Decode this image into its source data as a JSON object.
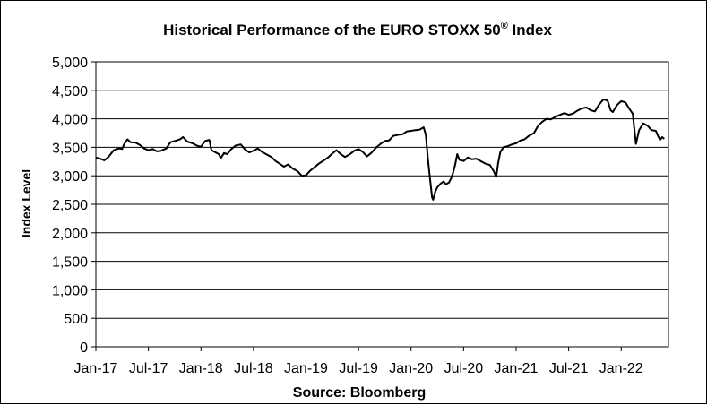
{
  "chart_data": {
    "type": "line",
    "title": "Historical Performance of the EURO STOXX 50",
    "title_superscript": "®",
    "title_suffix": " Index",
    "ylabel": "Index Level",
    "xlabel": "Source: Bloomberg",
    "ylim": [
      0,
      5000
    ],
    "yticks": [
      0,
      500,
      1000,
      1500,
      2000,
      2500,
      3000,
      3500,
      4000,
      4500,
      5000
    ],
    "ytick_labels": [
      "0",
      "500",
      "1,000",
      "1,500",
      "2,000",
      "2,500",
      "3,000",
      "3,500",
      "4,000",
      "4,500",
      "5,000"
    ],
    "xlim": [
      2017.0,
      2022.45
    ],
    "xticks": [
      2017.0,
      2017.5,
      2018.0,
      2018.5,
      2019.0,
      2019.5,
      2020.0,
      2020.5,
      2021.0,
      2021.5,
      2022.0
    ],
    "xtick_labels": [
      "Jan-17",
      "Jul-17",
      "Jan-18",
      "Jul-18",
      "Jan-19",
      "Jul-19",
      "Jan-20",
      "Jul-20",
      "Jan-21",
      "Jul-21",
      "Jan-22"
    ],
    "grid": "horizontal",
    "series": [
      {
        "name": "EURO STOXX 50",
        "color": "#000000",
        "points": [
          [
            2017.0,
            3320
          ],
          [
            2017.04,
            3300
          ],
          [
            2017.08,
            3270
          ],
          [
            2017.12,
            3330
          ],
          [
            2017.17,
            3450
          ],
          [
            2017.22,
            3480
          ],
          [
            2017.25,
            3470
          ],
          [
            2017.27,
            3560
          ],
          [
            2017.3,
            3640
          ],
          [
            2017.33,
            3590
          ],
          [
            2017.38,
            3580
          ],
          [
            2017.42,
            3540
          ],
          [
            2017.46,
            3480
          ],
          [
            2017.5,
            3450
          ],
          [
            2017.54,
            3470
          ],
          [
            2017.58,
            3430
          ],
          [
            2017.62,
            3440
          ],
          [
            2017.67,
            3480
          ],
          [
            2017.71,
            3590
          ],
          [
            2017.75,
            3610
          ],
          [
            2017.8,
            3640
          ],
          [
            2017.83,
            3680
          ],
          [
            2017.87,
            3600
          ],
          [
            2017.92,
            3570
          ],
          [
            2017.96,
            3530
          ],
          [
            2018.0,
            3510
          ],
          [
            2018.04,
            3610
          ],
          [
            2018.08,
            3630
          ],
          [
            2018.1,
            3450
          ],
          [
            2018.13,
            3420
          ],
          [
            2018.17,
            3380
          ],
          [
            2018.19,
            3310
          ],
          [
            2018.22,
            3400
          ],
          [
            2018.25,
            3380
          ],
          [
            2018.29,
            3470
          ],
          [
            2018.33,
            3530
          ],
          [
            2018.38,
            3550
          ],
          [
            2018.42,
            3460
          ],
          [
            2018.46,
            3410
          ],
          [
            2018.5,
            3440
          ],
          [
            2018.54,
            3480
          ],
          [
            2018.58,
            3420
          ],
          [
            2018.62,
            3380
          ],
          [
            2018.67,
            3330
          ],
          [
            2018.71,
            3260
          ],
          [
            2018.75,
            3210
          ],
          [
            2018.79,
            3160
          ],
          [
            2018.83,
            3200
          ],
          [
            2018.87,
            3130
          ],
          [
            2018.92,
            3080
          ],
          [
            2018.96,
            3000
          ],
          [
            2019.0,
            3010
          ],
          [
            2019.04,
            3090
          ],
          [
            2019.08,
            3150
          ],
          [
            2019.12,
            3210
          ],
          [
            2019.17,
            3270
          ],
          [
            2019.21,
            3320
          ],
          [
            2019.25,
            3390
          ],
          [
            2019.29,
            3450
          ],
          [
            2019.33,
            3380
          ],
          [
            2019.37,
            3330
          ],
          [
            2019.42,
            3380
          ],
          [
            2019.46,
            3440
          ],
          [
            2019.5,
            3470
          ],
          [
            2019.54,
            3420
          ],
          [
            2019.58,
            3340
          ],
          [
            2019.62,
            3400
          ],
          [
            2019.67,
            3500
          ],
          [
            2019.71,
            3560
          ],
          [
            2019.75,
            3610
          ],
          [
            2019.79,
            3620
          ],
          [
            2019.83,
            3700
          ],
          [
            2019.88,
            3720
          ],
          [
            2019.92,
            3730
          ],
          [
            2019.96,
            3780
          ],
          [
            2020.0,
            3790
          ],
          [
            2020.04,
            3800
          ],
          [
            2020.08,
            3810
          ],
          [
            2020.12,
            3850
          ],
          [
            2020.14,
            3720
          ],
          [
            2020.16,
            3300
          ],
          [
            2020.18,
            2960
          ],
          [
            2020.2,
            2620
          ],
          [
            2020.21,
            2580
          ],
          [
            2020.23,
            2720
          ],
          [
            2020.25,
            2800
          ],
          [
            2020.28,
            2860
          ],
          [
            2020.31,
            2900
          ],
          [
            2020.33,
            2850
          ],
          [
            2020.36,
            2880
          ],
          [
            2020.38,
            2950
          ],
          [
            2020.4,
            3050
          ],
          [
            2020.42,
            3200
          ],
          [
            2020.44,
            3380
          ],
          [
            2020.46,
            3280
          ],
          [
            2020.5,
            3260
          ],
          [
            2020.54,
            3320
          ],
          [
            2020.58,
            3290
          ],
          [
            2020.62,
            3300
          ],
          [
            2020.67,
            3250
          ],
          [
            2020.71,
            3210
          ],
          [
            2020.75,
            3190
          ],
          [
            2020.79,
            3070
          ],
          [
            2020.81,
            2980
          ],
          [
            2020.83,
            3240
          ],
          [
            2020.85,
            3420
          ],
          [
            2020.88,
            3500
          ],
          [
            2020.92,
            3520
          ],
          [
            2020.96,
            3550
          ],
          [
            2021.0,
            3570
          ],
          [
            2021.04,
            3620
          ],
          [
            2021.08,
            3640
          ],
          [
            2021.12,
            3700
          ],
          [
            2021.17,
            3750
          ],
          [
            2021.21,
            3880
          ],
          [
            2021.25,
            3950
          ],
          [
            2021.29,
            4000
          ],
          [
            2021.33,
            3990
          ],
          [
            2021.37,
            4030
          ],
          [
            2021.42,
            4070
          ],
          [
            2021.46,
            4100
          ],
          [
            2021.5,
            4070
          ],
          [
            2021.54,
            4090
          ],
          [
            2021.58,
            4140
          ],
          [
            2021.62,
            4180
          ],
          [
            2021.67,
            4200
          ],
          [
            2021.71,
            4150
          ],
          [
            2021.75,
            4130
          ],
          [
            2021.79,
            4250
          ],
          [
            2021.83,
            4340
          ],
          [
            2021.87,
            4320
          ],
          [
            2021.9,
            4150
          ],
          [
            2021.92,
            4120
          ],
          [
            2021.96,
            4240
          ],
          [
            2022.0,
            4310
          ],
          [
            2022.04,
            4290
          ],
          [
            2022.08,
            4170
          ],
          [
            2022.11,
            4090
          ],
          [
            2022.14,
            3560
          ],
          [
            2022.17,
            3800
          ],
          [
            2022.21,
            3920
          ],
          [
            2022.25,
            3880
          ],
          [
            2022.29,
            3800
          ],
          [
            2022.33,
            3790
          ],
          [
            2022.35,
            3700
          ],
          [
            2022.37,
            3630
          ],
          [
            2022.39,
            3680
          ],
          [
            2022.41,
            3650
          ]
        ]
      }
    ]
  }
}
